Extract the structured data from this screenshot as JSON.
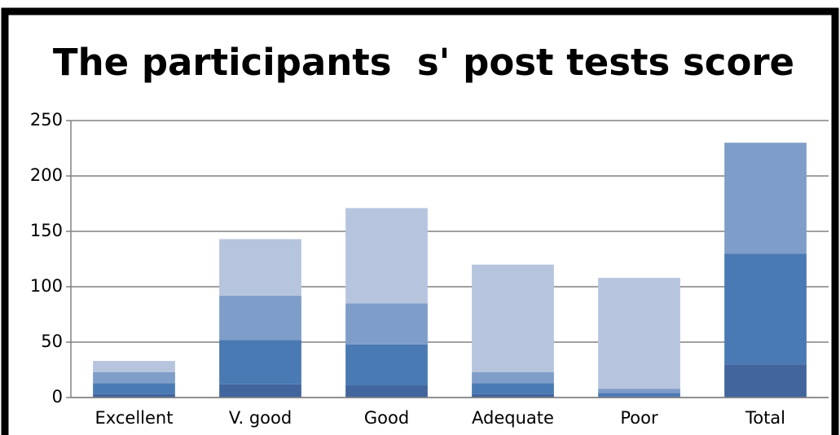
{
  "chart_data": {
    "type": "stacked_bar",
    "title": "The participants  s' post tests score",
    "categories": [
      "Excellent",
      "V. good",
      "Good",
      "Adequate",
      "Poor",
      "Total"
    ],
    "series": [
      {
        "color": "#42659e",
        "values": [
          3,
          12,
          11,
          3,
          1,
          30
        ]
      },
      {
        "color": "#4a7ab3",
        "values": [
          10,
          40,
          37,
          10,
          3,
          100
        ]
      },
      {
        "color": "#7f9dc9",
        "values": [
          10,
          40,
          37,
          10,
          4,
          100
        ]
      },
      {
        "color": "#b6c5dd",
        "values": [
          10,
          51,
          86,
          97,
          100,
          0
        ]
      }
    ],
    "ylim": [
      0,
      250
    ],
    "yticks": [
      0,
      50,
      100,
      150,
      200,
      250
    ],
    "grid": true
  }
}
